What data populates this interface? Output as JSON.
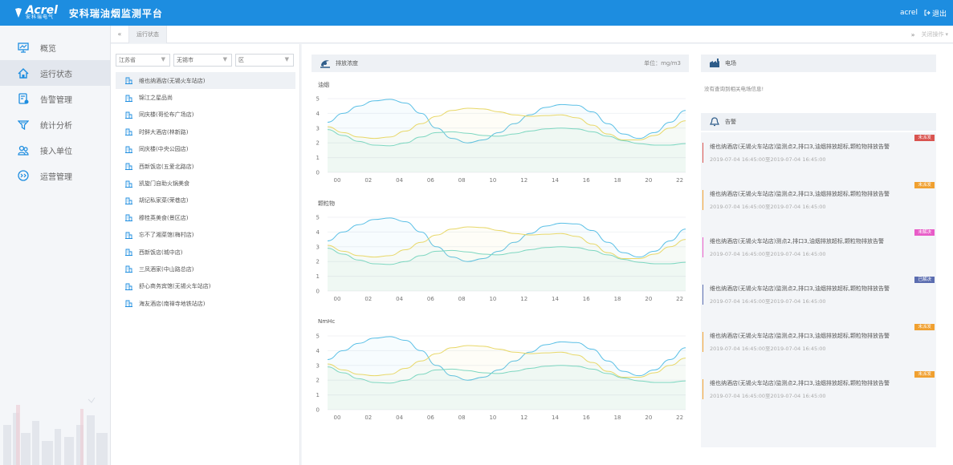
{
  "header": {
    "logo_text": "Acrel",
    "logo_sub": "安科瑞电气",
    "title": "安科瑞油烟监测平台",
    "user": "acrel",
    "logout_label": "退出"
  },
  "sidebar": {
    "items": [
      {
        "label": "概览",
        "icon": "monitor-icon"
      },
      {
        "label": "运行状态",
        "icon": "home-icon"
      },
      {
        "label": "告警管理",
        "icon": "alarm-doc-icon"
      },
      {
        "label": "统计分析",
        "icon": "funnel-icon"
      },
      {
        "label": "接入单位",
        "icon": "users-icon"
      },
      {
        "label": "运营管理",
        "icon": "service-icon"
      }
    ]
  },
  "tabs": {
    "active": "运行状态",
    "right_label": "关闭操作"
  },
  "filters": {
    "province": "江苏省",
    "city": "无锡市",
    "district": "区"
  },
  "tree": [
    "维也纳酒店(无锡火车站店)",
    "锦江之星品尚",
    "同庆楼(哥伦布广场店)",
    "时鲜大酒店(林新路)",
    "同庆楼(中央公园店)",
    "西新饭店(五爱北路店)",
    "凯旋门自助火锅美食",
    "胡记私家菜(荣巷店)",
    "穆桂英美食(景区店)",
    "忘不了湘菜馆(梅村店)",
    "西新饭店(城中店)",
    "三凤酒家(中山路总店)",
    "舒心商务宾馆(无锡火车站店)",
    "海友酒店(南禅寺地铁站店)"
  ],
  "concentration": {
    "title": "排放浓度",
    "unit": "单位：mg/m3"
  },
  "electric": {
    "title": "电场",
    "empty": "没有查询到相关电场信息!"
  },
  "alarm_panel": {
    "title": "告警",
    "items": [
      {
        "text": "维也纳酒店(无锡火车站店)监测点2,排口3,油烟排放超标,颗粒物排放告警",
        "time": "2019-07-04 16:45:00至2019-07-04 16:45:00",
        "badge": "未派发",
        "color": "#d9534f"
      },
      {
        "text": "维也纳酒店(无锡火车站店)监测点2,排口3,油烟排放超标,颗粒物排放告警",
        "time": "2019-07-04 16:45:00至2019-07-04 16:45:00",
        "badge": "未派发",
        "color": "#f0a030"
      },
      {
        "text": "维也纳酒店(无锡火车站店)测点2,排口3,油烟排放超标,颗粒物排放告警",
        "time": "2019-07-04 16:45:00至2019-07-04 16:45:00",
        "badge": "未解决",
        "color": "#e85cc8"
      },
      {
        "text": "维也纳酒店(无锡火车站店)监测点2,排口3,油烟排放超标,颗粒物排放告警",
        "time": "2019-07-04 16:45:00至2019-07-04 16:45:00",
        "badge": "已解决",
        "color": "#5b6db0"
      },
      {
        "text": "维也纳酒店(无锡火车站店)监测点2,排口3,油烟排放超标,颗粒物排放告警",
        "time": "2019-07-04 16:45:00至2019-07-04 16:45:00",
        "badge": "未派发",
        "color": "#f0a030"
      },
      {
        "text": "维也纳酒店(无锡火车站店)监测点2,排口3,油烟排放超标,颗粒物排放告警",
        "time": "2019-07-04 16:45:00至2019-07-04 16:45:00",
        "badge": "未派发",
        "color": "#f0a030"
      }
    ]
  },
  "chart_data": [
    {
      "type": "line",
      "title": "油烟",
      "x": [
        "00",
        "01",
        "02",
        "03",
        "04",
        "05",
        "06",
        "07",
        "08",
        "09",
        "10",
        "11",
        "12",
        "13",
        "14",
        "15",
        "16",
        "17",
        "18",
        "19",
        "20",
        "21",
        "22",
        "23"
      ],
      "ylim": [
        0,
        5
      ],
      "yticks": [
        0,
        1,
        2,
        3,
        4,
        5
      ],
      "xticks": [
        "00",
        "02",
        "04",
        "06",
        "08",
        "10",
        "12",
        "14",
        "16",
        "18",
        "20",
        "22"
      ],
      "series": [
        {
          "color": "#5bc0e6",
          "values": [
            3.4,
            4.0,
            4.5,
            4.85,
            4.95,
            4.7,
            4.0,
            3.0,
            2.3,
            2.0,
            2.2,
            2.7,
            3.3,
            3.9,
            4.4,
            4.6,
            4.55,
            4.1,
            3.3,
            2.6,
            2.3,
            2.7,
            3.4,
            4.2
          ]
        },
        {
          "color": "#e8d86a",
          "values": [
            3.1,
            2.7,
            2.4,
            2.3,
            2.4,
            2.8,
            3.3,
            3.8,
            4.2,
            4.35,
            4.3,
            4.1,
            3.9,
            3.8,
            3.85,
            3.9,
            3.7,
            3.2,
            2.6,
            2.2,
            2.2,
            2.5,
            3.0,
            3.5
          ]
        },
        {
          "color": "#7ed7c1",
          "values": [
            2.9,
            2.5,
            2.1,
            1.85,
            1.8,
            2.0,
            2.4,
            2.7,
            2.75,
            2.65,
            2.5,
            2.45,
            2.6,
            2.8,
            2.95,
            3.0,
            2.95,
            2.75,
            2.45,
            2.15,
            1.95,
            1.85,
            1.85,
            1.95
          ]
        }
      ]
    },
    {
      "type": "line",
      "title": "颗粒物",
      "x": [
        "00",
        "01",
        "02",
        "03",
        "04",
        "05",
        "06",
        "07",
        "08",
        "09",
        "10",
        "11",
        "12",
        "13",
        "14",
        "15",
        "16",
        "17",
        "18",
        "19",
        "20",
        "21",
        "22",
        "23"
      ],
      "ylim": [
        0,
        5
      ],
      "yticks": [
        0,
        1,
        2,
        3,
        4,
        5
      ],
      "xticks": [
        "00",
        "02",
        "04",
        "06",
        "08",
        "10",
        "12",
        "14",
        "16",
        "18",
        "20",
        "22"
      ],
      "series": [
        {
          "color": "#5bc0e6",
          "values": [
            3.4,
            4.0,
            4.5,
            4.85,
            4.95,
            4.7,
            4.0,
            3.0,
            2.3,
            2.0,
            2.2,
            2.7,
            3.3,
            3.9,
            4.4,
            4.6,
            4.55,
            4.1,
            3.3,
            2.6,
            2.3,
            2.7,
            3.4,
            4.2
          ]
        },
        {
          "color": "#e8d86a",
          "values": [
            3.1,
            2.7,
            2.4,
            2.3,
            2.4,
            2.8,
            3.3,
            3.8,
            4.2,
            4.35,
            4.3,
            4.1,
            3.9,
            3.8,
            3.85,
            3.9,
            3.7,
            3.2,
            2.6,
            2.2,
            2.2,
            2.5,
            3.0,
            3.5
          ]
        },
        {
          "color": "#7ed7c1",
          "values": [
            2.9,
            2.5,
            2.1,
            1.85,
            1.8,
            2.0,
            2.4,
            2.7,
            2.75,
            2.65,
            2.5,
            2.45,
            2.6,
            2.8,
            2.95,
            3.0,
            2.95,
            2.75,
            2.45,
            2.15,
            1.95,
            1.85,
            1.85,
            1.95
          ]
        }
      ]
    },
    {
      "type": "line",
      "title": "NmHc",
      "x": [
        "00",
        "01",
        "02",
        "03",
        "04",
        "05",
        "06",
        "07",
        "08",
        "09",
        "10",
        "11",
        "12",
        "13",
        "14",
        "15",
        "16",
        "17",
        "18",
        "19",
        "20",
        "21",
        "22",
        "23"
      ],
      "ylim": [
        0,
        5
      ],
      "yticks": [
        0,
        1,
        2,
        3,
        4,
        5
      ],
      "xticks": [
        "00",
        "02",
        "04",
        "06",
        "08",
        "10",
        "12",
        "14",
        "16",
        "18",
        "20",
        "22"
      ],
      "series": [
        {
          "color": "#5bc0e6",
          "values": [
            3.4,
            4.0,
            4.5,
            4.85,
            4.95,
            4.7,
            4.0,
            3.0,
            2.3,
            2.0,
            2.2,
            2.7,
            3.3,
            3.9,
            4.4,
            4.6,
            4.55,
            4.1,
            3.3,
            2.6,
            2.3,
            2.7,
            3.4,
            4.2
          ]
        },
        {
          "color": "#e8d86a",
          "values": [
            3.1,
            2.7,
            2.4,
            2.3,
            2.4,
            2.8,
            3.3,
            3.8,
            4.2,
            4.35,
            4.3,
            4.1,
            3.9,
            3.8,
            3.85,
            3.9,
            3.7,
            3.2,
            2.6,
            2.2,
            2.2,
            2.5,
            3.0,
            3.5
          ]
        },
        {
          "color": "#7ed7c1",
          "values": [
            2.9,
            2.5,
            2.1,
            1.85,
            1.8,
            2.0,
            2.4,
            2.7,
            2.75,
            2.65,
            2.5,
            2.45,
            2.6,
            2.8,
            2.95,
            3.0,
            2.95,
            2.75,
            2.45,
            2.15,
            1.95,
            1.85,
            1.85,
            1.95
          ]
        }
      ]
    }
  ]
}
